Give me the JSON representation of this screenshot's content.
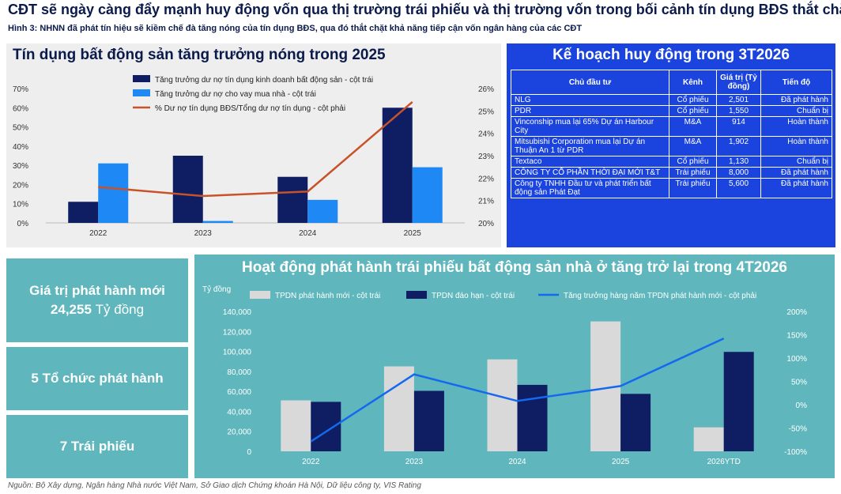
{
  "header": {
    "title": "CĐT sẽ ngày càng đẩy mạnh huy động vốn qua thị trường trái phiếu và thị trường vốn trong bối cảnh tín dụng BĐS thắt chặt",
    "subtitle": "Hình 3: NHNN đã phát tín hiệu sẽ kiềm chế đà tăng nóng của tín dụng BĐS, qua đó thắt chặt khả năng tiếp cận vốn ngân hàng của các CĐT"
  },
  "credit_panel": {
    "title": "Tín dụng bất động sản tăng trưởng nóng trong 2025"
  },
  "plan_panel": {
    "title": "Kế hoạch huy động trong 3T2026",
    "columns": [
      "Chủ đầu tư",
      "Kênh",
      "Giá trị (Tỷ đồng)",
      "Tiến độ"
    ],
    "rows": [
      [
        "NLG",
        "Cổ phiếu",
        "2,501",
        "Đã phát hành"
      ],
      [
        "PDR",
        "Cổ phiếu",
        "1,550",
        "Chuẩn bị"
      ],
      [
        "Vinconship mua lại 65% Dự án Harbour City",
        "M&A",
        "914",
        "Hoàn thành"
      ],
      [
        "Mitsubishi Corporation mua lại Dự án Thuận An 1 từ PDR",
        "M&A",
        "1,902",
        "Hoàn thành"
      ],
      [
        "Textaco",
        "Cổ phiếu",
        "1,130",
        "Chuẩn bị"
      ],
      [
        "CÔNG TY CỔ PHẦN THỜI ĐẠI MỚI T&T",
        "Trái phiếu",
        "8,000",
        "Đã phát hành"
      ],
      [
        "Công ty TNHH Đầu tư và phát triển bất động sản Phát Đạt",
        "Trái phiếu",
        "5,600",
        "Đã phát hành"
      ]
    ]
  },
  "tiles": {
    "value_label": "Giá trị phát hành mới",
    "value_number": "24,255",
    "value_unit": "Tỷ đồng",
    "issuers": "5 Tổ chức phát hành",
    "bonds": "7 Trái phiếu"
  },
  "bond_panel": {
    "title": "Hoạt động phát hành trái phiếu bất động sản nhà ở tăng trở lại trong 4T2026"
  },
  "source": "Nguồn: Bộ Xây dựng, Ngân hàng Nhà nước Việt Nam, Sở Giao dịch Chứng khoán Hà Nội, Dữ liệu công ty, VIS Rating",
  "colors": {
    "navy": "#0f1d63",
    "blue": "#1e88f5",
    "orange": "#c8522a",
    "light_gray": "#d9d9d9",
    "line_blue": "#1469ee",
    "teal": "#5fb7bd",
    "table_blue": "#1a44dd"
  },
  "chart_data": [
    {
      "type": "bar",
      "categories": [
        "2022",
        "2023",
        "2024",
        "2025"
      ],
      "series": [
        {
          "name": "Tăng trưởng dư nợ tín dụng kinh doanh bất động sản - cột trái",
          "axis": "left",
          "kind": "bar",
          "values": [
            11,
            35,
            24,
            60
          ]
        },
        {
          "name": "Tăng trưởng dư nợ cho vay mua nhà - cột trái",
          "axis": "left",
          "kind": "bar",
          "values": [
            31,
            1,
            12,
            29
          ]
        },
        {
          "name": "% Dư nợ tín dụng BĐS/Tổng dư nợ tín dụng - cột phải",
          "axis": "right",
          "kind": "line",
          "values": [
            21.6,
            21.2,
            21.4,
            25.4
          ]
        }
      ],
      "y_left": {
        "ylim": [
          0,
          70
        ],
        "ticks": [
          "0%",
          "10%",
          "20%",
          "30%",
          "40%",
          "50%",
          "60%",
          "70%"
        ]
      },
      "y_right": {
        "ylim": [
          20,
          26
        ],
        "ticks": [
          "20%",
          "21%",
          "22%",
          "23%",
          "24%",
          "25%",
          "26%"
        ]
      },
      "legend": "top"
    },
    {
      "type": "bar",
      "categories": [
        "2022",
        "2023",
        "2024",
        "2025",
        "2026YTD"
      ],
      "ylabel": "Tỷ đồng",
      "series": [
        {
          "name": "TPDN phát hành mới - cột trái",
          "axis": "left",
          "kind": "bar",
          "values": [
            51000,
            85000,
            92000,
            130000,
            24000
          ]
        },
        {
          "name": "TPDN đáo hạn - cột trái",
          "axis": "left",
          "kind": "bar",
          "values": [
            49500,
            60500,
            66500,
            57500,
            99500
          ]
        },
        {
          "name": "Tăng trưởng hàng năm TPDN phát hành mới - cột phải",
          "axis": "right",
          "kind": "line",
          "values": [
            -79,
            65,
            8,
            40,
            142
          ]
        }
      ],
      "y_left": {
        "ylim": [
          0,
          140000
        ],
        "ticks": [
          "0",
          "20,000",
          "40,000",
          "60,000",
          "80,000",
          "100,000",
          "120,000",
          "140,000"
        ]
      },
      "y_right": {
        "ylim": [
          -100,
          200
        ],
        "ticks": [
          "-100%",
          "-50%",
          "0%",
          "50%",
          "100%",
          "150%",
          "200%"
        ]
      },
      "legend": "top"
    }
  ]
}
